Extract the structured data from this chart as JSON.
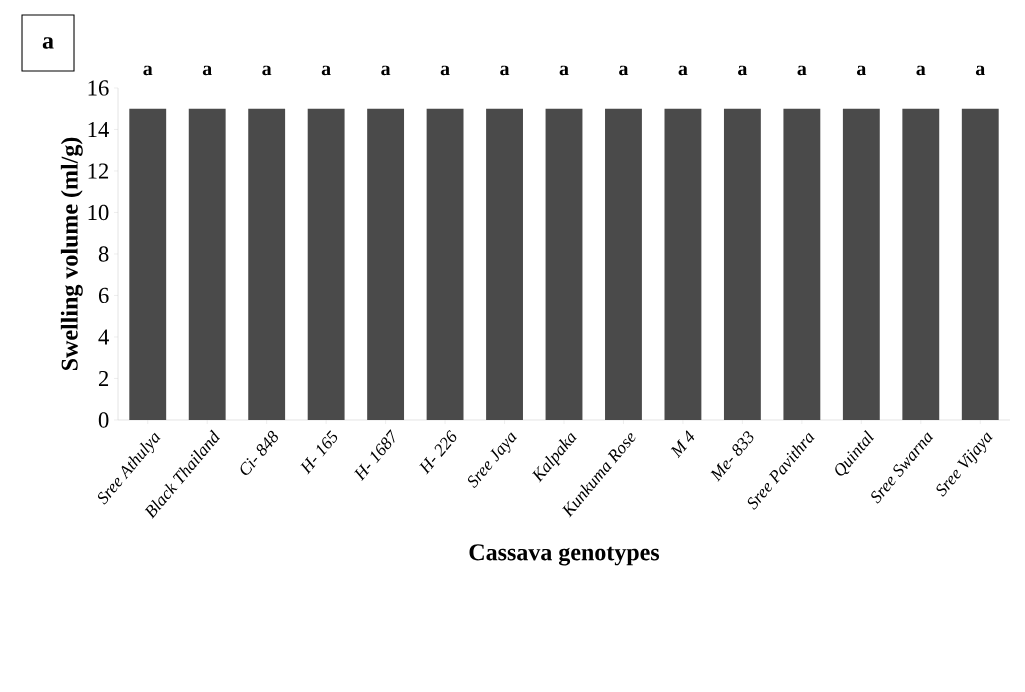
{
  "chart_data": {
    "type": "bar",
    "ylabel": "Swelling volume (ml/g)",
    "xlabel": "Cassava genotypes",
    "categories": [
      "Sree Athulya",
      "Black Thailand",
      "Ci- 848",
      "H- 165",
      "H- 1687",
      "H- 226",
      "Sree Jaya",
      "Kalpaka",
      "Kunkuma Rose",
      "M 4",
      "Me- 833",
      "Sree Pavithra",
      "Quintal",
      "Sree Swarna",
      "Sree Vijaya"
    ],
    "values": [
      15,
      15,
      15,
      15,
      15,
      15,
      15,
      15,
      15,
      15,
      15,
      15,
      15,
      15,
      15
    ],
    "color": "#4a4a4a",
    "ylim": [
      0,
      16
    ],
    "yticks": [
      0,
      2,
      4,
      6,
      8,
      10,
      12,
      14,
      16
    ],
    "grid": false,
    "annotations": [
      "a",
      "a",
      "a",
      "a",
      "a",
      "a",
      "a",
      "a",
      "a",
      "a",
      "a",
      "a",
      "a",
      "a",
      "a",
      "a"
    ]
  }
}
